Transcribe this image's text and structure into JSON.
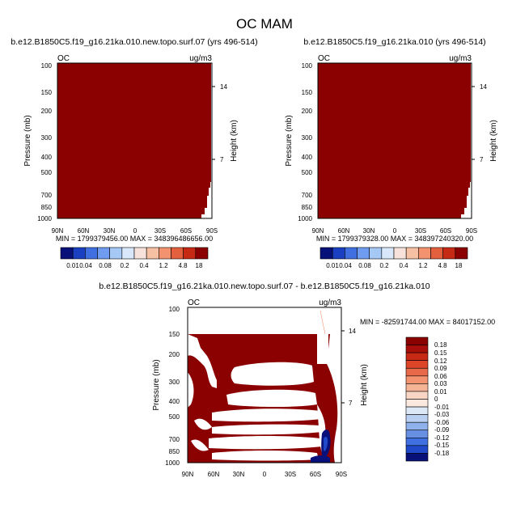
{
  "main_title": "OC MAM",
  "chart_data": [
    {
      "type": "heatmap",
      "title": "b.e12.B1850C5.f19_g16.21ka.010.new.topo.surf.07 (yrs 496-514)",
      "left_label": "OC",
      "units": "ug/m3",
      "ylabel": "Pressure (mb)",
      "ylabel_right": "Height (km)",
      "x_ticks": [
        "90N",
        "60N",
        "30N",
        "0",
        "30S",
        "60S",
        "90S"
      ],
      "y_ticks": [
        "100",
        "150",
        "200",
        "300",
        "400",
        "500",
        "700",
        "850",
        "1000"
      ],
      "y_ticks_right": [
        "14",
        "7"
      ],
      "y_scale": "log",
      "ylim": [
        1000,
        100
      ],
      "fill": "nearly uniform, highest level (>18)",
      "stats": "MIN = 1799379456.00   MAX = 348396486656.00",
      "colorbar": {
        "orientation": "horizontal",
        "labels": [
          "0.01",
          "0.04",
          "0.08",
          "0.2",
          "0.4",
          "1.2",
          "4.8",
          "18"
        ],
        "colors": [
          "#08107a",
          "#1a3fc0",
          "#3f6fe0",
          "#6f9bf0",
          "#a6c8f5",
          "#d8e7fa",
          "#f6e2da",
          "#f6c0a3",
          "#f2926f",
          "#e45f3d",
          "#c72a14",
          "#8b0000"
        ]
      }
    },
    {
      "type": "heatmap",
      "title": "b.e12.B1850C5.f19_g16.21ka.010 (yrs 496-514)",
      "left_label": "OC",
      "units": "ug/m3",
      "ylabel": "Pressure (mb)",
      "ylabel_right": "Height (km)",
      "x_ticks": [
        "90N",
        "60N",
        "30N",
        "0",
        "30S",
        "60S",
        "90S"
      ],
      "y_ticks": [
        "100",
        "150",
        "200",
        "300",
        "400",
        "500",
        "700",
        "850",
        "1000"
      ],
      "y_ticks_right": [
        "14",
        "7"
      ],
      "y_scale": "log",
      "ylim": [
        1000,
        100
      ],
      "fill": "nearly uniform, highest level (>18)",
      "stats": "MIN = 1799379328.00   MAX = 348397240320.00",
      "colorbar": {
        "orientation": "horizontal",
        "labels": [
          "0.01",
          "0.04",
          "0.08",
          "0.2",
          "0.4",
          "1.2",
          "4.8",
          "18"
        ],
        "colors": [
          "#08107a",
          "#1a3fc0",
          "#3f6fe0",
          "#6f9bf0",
          "#a6c8f5",
          "#d8e7fa",
          "#f6e2da",
          "#f6c0a3",
          "#f2926f",
          "#e45f3d",
          "#c72a14",
          "#8b0000"
        ]
      }
    },
    {
      "type": "heatmap",
      "title": "b.e12.B1850C5.f19_g16.21ka.010.new.topo.surf.07 - b.e12.B1850C5.f19_g16.21ka.010",
      "left_label": "OC",
      "units": "ug/m3",
      "ylabel": "Pressure (mb)",
      "ylabel_right": "Height (km)",
      "x_ticks": [
        "90N",
        "60N",
        "30N",
        "0",
        "30S",
        "60S",
        "90S"
      ],
      "y_ticks": [
        "100",
        "150",
        "200",
        "300",
        "400",
        "500",
        "700",
        "850",
        "1000"
      ],
      "y_ticks_right": [
        "14",
        "7"
      ],
      "y_scale": "log",
      "ylim": [
        1000,
        100
      ],
      "fill": "difference field: banded dark-red (>0.18) and white regions, small blue area near 70S-80S at 700-1000 mb",
      "stats": "MIN = -82591744.00   MAX = 84017152.00",
      "colorbar": {
        "orientation": "vertical",
        "labels": [
          "0.18",
          "0.15",
          "0.12",
          "0.09",
          "0.06",
          "0.03",
          "0.01",
          "0",
          "-0.01",
          "-0.03",
          "-0.06",
          "-0.09",
          "-0.12",
          "-0.15",
          "-0.18"
        ],
        "colors": [
          "#8b0000",
          "#a80f0a",
          "#c72a14",
          "#dc4528",
          "#e8684a",
          "#f2926f",
          "#f6b497",
          "#f9d6c4",
          "#fbe9e0",
          "#dde8f7",
          "#b9d0f2",
          "#8fb2ec",
          "#6890e2",
          "#3f6fe0",
          "#2049c9",
          "#08107a"
        ]
      }
    }
  ]
}
